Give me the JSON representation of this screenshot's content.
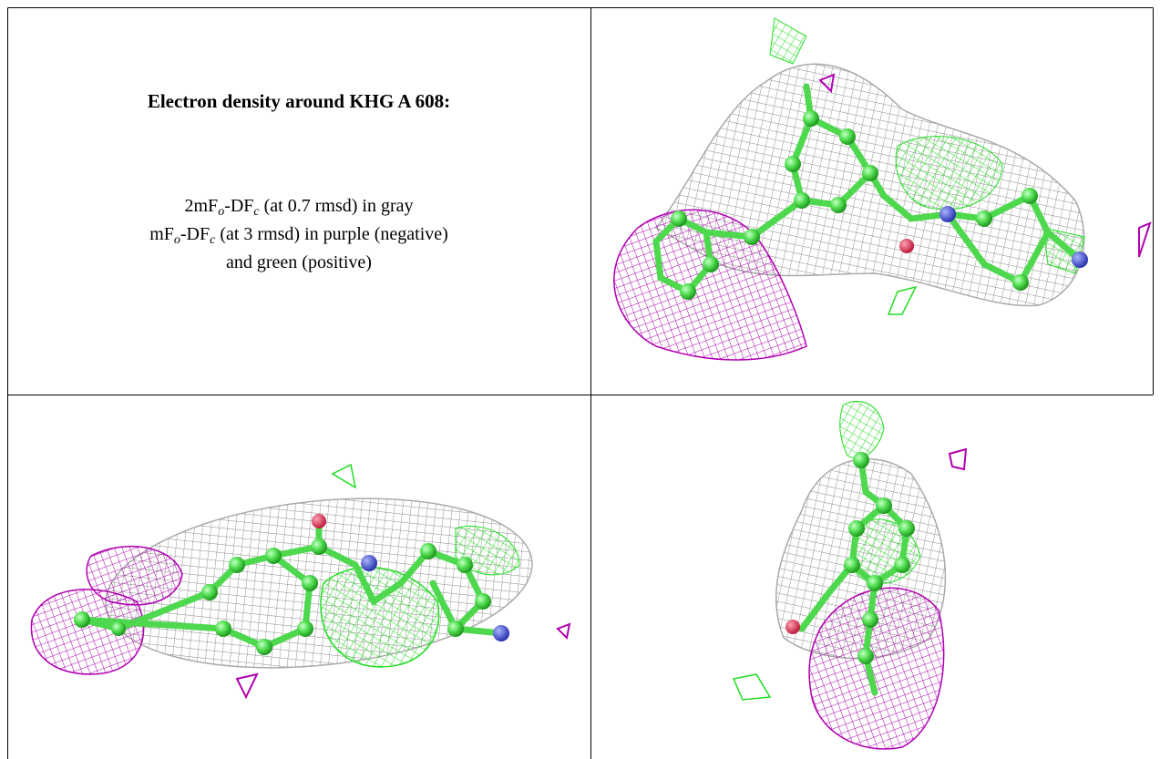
{
  "caption": {
    "title": "Electron density around KHG A 608:",
    "lines": [
      [
        "2mF",
        "o",
        "-DF",
        "c",
        " (at 0.7 rmsd) in gray"
      ],
      [
        "mF",
        "o",
        "-DF",
        "c",
        " (at 3 rmsd) in purple (negative)"
      ],
      [
        "and green (positive)"
      ]
    ]
  }
}
